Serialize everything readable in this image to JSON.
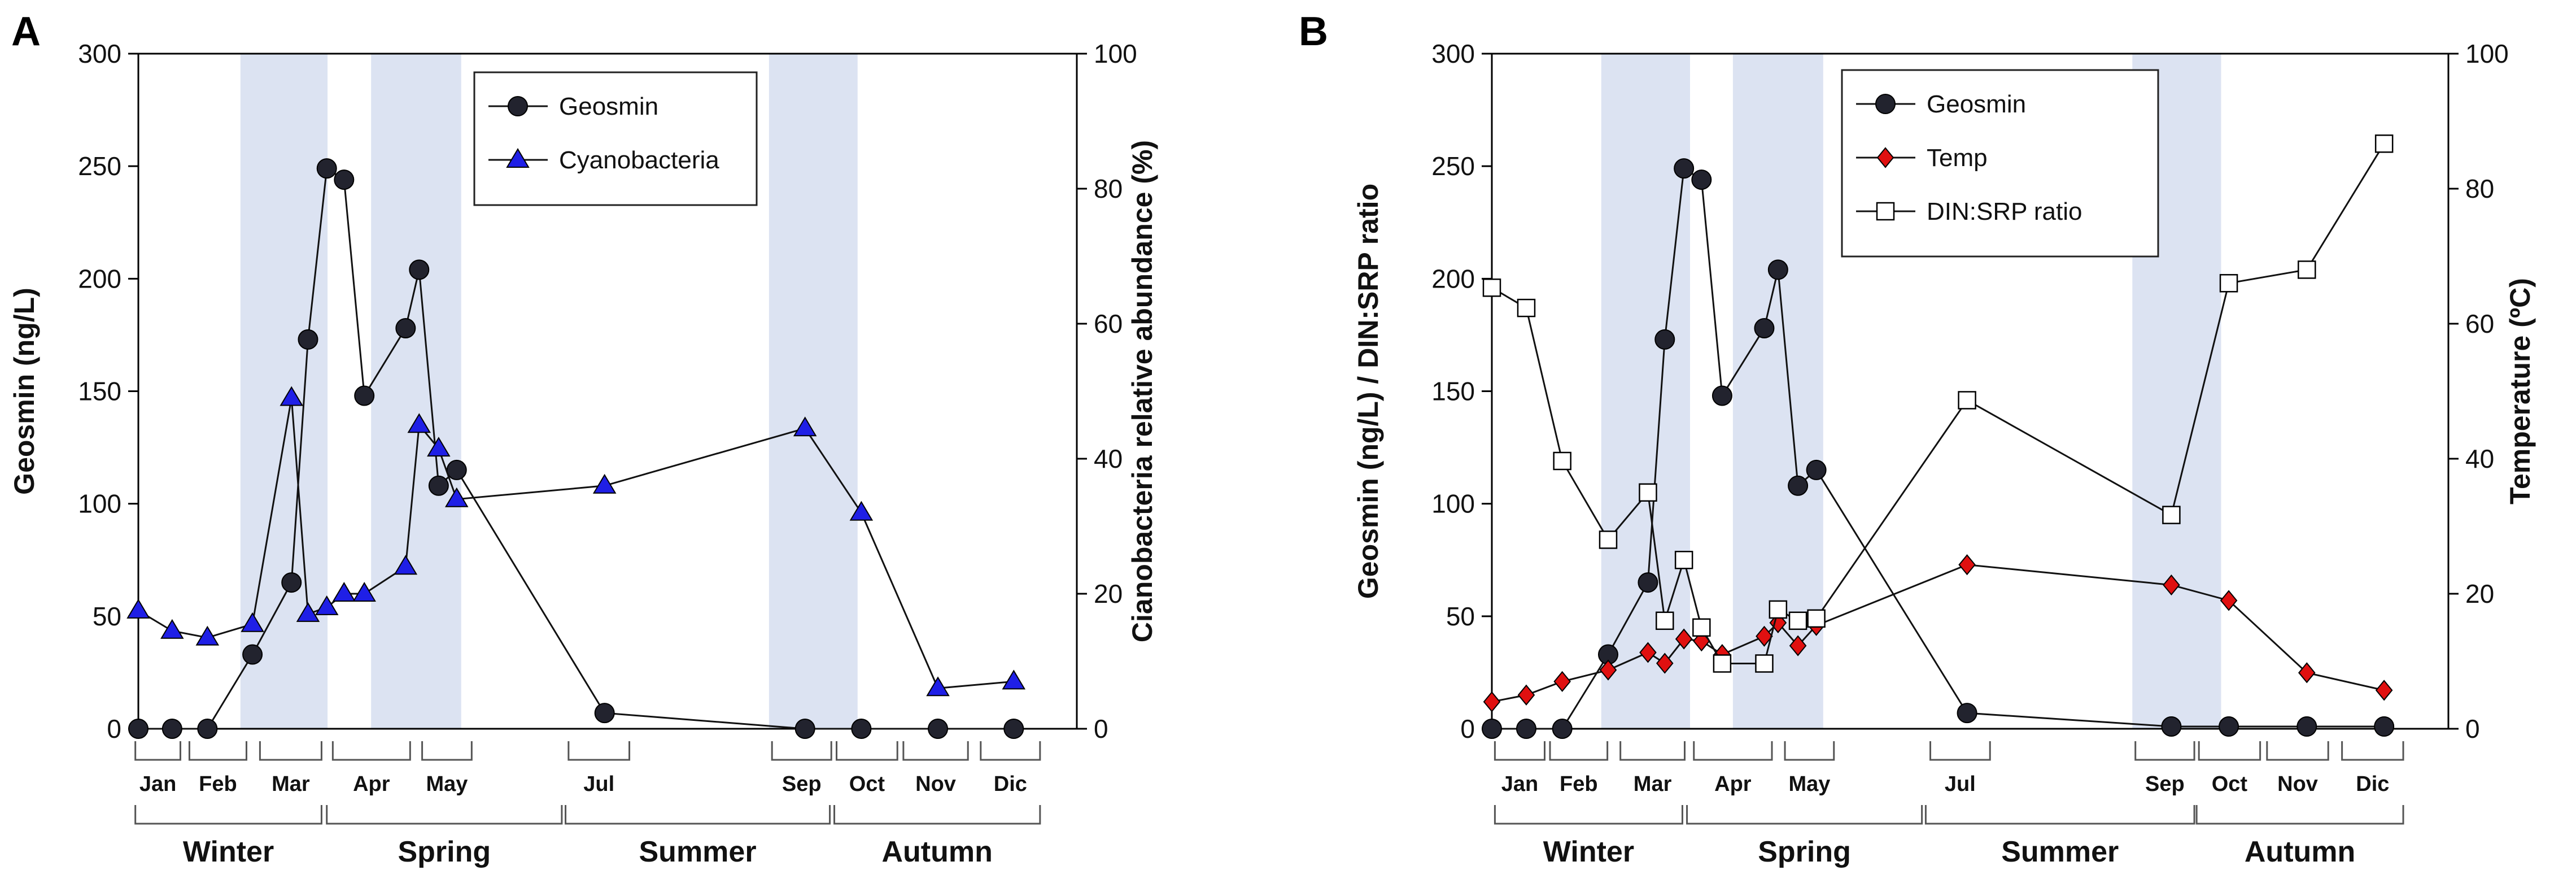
{
  "chart_data": [
    {
      "panel": "A",
      "type": "line",
      "ylabel": "Geosmin (ng/L)",
      "ylabel_right": "Cianobacteria relative abundance (%)",
      "ylim": [
        0,
        300
      ],
      "ylim_right": [
        0,
        100
      ],
      "yticks": [
        "0",
        "50",
        "100",
        "150",
        "200",
        "250",
        "300"
      ],
      "yticks_right": [
        "0",
        "20",
        "40",
        "60",
        "80",
        "100"
      ],
      "xlim": [
        1.0,
        13.5
      ],
      "shaded_x": [
        [
          2.36,
          3.52
        ],
        [
          4.1,
          5.3
        ],
        [
          9.4,
          10.58
        ]
      ],
      "months": [
        {
          "label": "Jan",
          "range": [
            0.96,
            1.56
          ]
        },
        {
          "label": "Feb",
          "range": [
            1.68,
            2.44
          ]
        },
        {
          "label": "Mar",
          "range": [
            2.62,
            3.44
          ]
        },
        {
          "label": "Apr",
          "range": [
            3.59,
            4.62
          ]
        },
        {
          "label": "May",
          "range": [
            4.78,
            5.44
          ]
        },
        {
          "label": "Jul",
          "range": [
            6.73,
            7.54
          ]
        },
        {
          "label": "Sep",
          "range": [
            9.44,
            10.23
          ]
        },
        {
          "label": "Oct",
          "range": [
            10.3,
            11.11
          ]
        },
        {
          "label": "Nov",
          "range": [
            11.19,
            12.05
          ]
        },
        {
          "label": "Dic",
          "range": [
            12.22,
            13.01
          ]
        }
      ],
      "seasons": [
        {
          "label": "Winter",
          "range": [
            0.96,
            3.44
          ]
        },
        {
          "label": "Spring",
          "range": [
            3.51,
            6.64
          ]
        },
        {
          "label": "Summer",
          "range": [
            6.69,
            10.21
          ]
        },
        {
          "label": "Autumn",
          "range": [
            10.27,
            13.01
          ]
        }
      ],
      "x": [
        1.0,
        1.45,
        1.92,
        2.52,
        3.04,
        3.26,
        3.51,
        3.74,
        4.01,
        4.56,
        4.74,
        5.0,
        5.24,
        7.21,
        9.88,
        10.63,
        11.65,
        12.66
      ],
      "series": [
        {
          "name": "Geosmin",
          "axis": "left",
          "marker": "circle",
          "color": "#22232e",
          "values": [
            0,
            0,
            0,
            33,
            65,
            173,
            249,
            244,
            148,
            178,
            204,
            108,
            115,
            7,
            0,
            0,
            0,
            0
          ]
        },
        {
          "name": "Cyanobacteria",
          "axis": "right",
          "marker": "triangle",
          "color": "#1f1fe6",
          "values": [
            17.5,
            14.5,
            13.5,
            15.5,
            49,
            17,
            18,
            20,
            20,
            24,
            45,
            41.5,
            34,
            36,
            44.5,
            32,
            6,
            7
          ]
        }
      ],
      "legend_position": "top-center"
    },
    {
      "panel": "B",
      "type": "line",
      "ylabel": "Geosmin (ng/L) / DIN:SRP ratio",
      "ylabel_right": "Temperature (ºC)",
      "ylim": [
        0,
        300
      ],
      "ylim_right": [
        0,
        100
      ],
      "yticks": [
        "0",
        "50",
        "100",
        "150",
        "200",
        "250",
        "300"
      ],
      "yticks_right": [
        "0",
        "20",
        "40",
        "60",
        "80",
        "100"
      ],
      "xlim": [
        1.0,
        13.5
      ],
      "shaded_x": [
        [
          2.43,
          3.59
        ],
        [
          4.15,
          5.33
        ],
        [
          9.37,
          10.53
        ]
      ],
      "months": [
        {
          "label": "Jan",
          "range": [
            1.04,
            1.69
          ]
        },
        {
          "label": "Feb",
          "range": [
            1.76,
            2.51
          ]
        },
        {
          "label": "Mar",
          "range": [
            2.68,
            3.52
          ]
        },
        {
          "label": "Apr",
          "range": [
            3.64,
            4.66
          ]
        },
        {
          "label": "May",
          "range": [
            4.83,
            5.47
          ]
        },
        {
          "label": "Jul",
          "range": [
            6.73,
            7.51
          ]
        },
        {
          "label": "Sep",
          "range": [
            9.41,
            10.18
          ]
        },
        {
          "label": "Oct",
          "range": [
            10.24,
            11.04
          ]
        },
        {
          "label": "Nov",
          "range": [
            11.13,
            11.93
          ]
        },
        {
          "label": "Dic",
          "range": [
            12.11,
            12.91
          ]
        }
      ],
      "seasons": [
        {
          "label": "Winter",
          "range": [
            1.04,
            3.49
          ]
        },
        {
          "label": "Spring",
          "range": [
            3.55,
            6.62
          ]
        },
        {
          "label": "Summer",
          "range": [
            6.67,
            10.18
          ]
        },
        {
          "label": "Autumn",
          "range": [
            10.21,
            12.91
          ]
        }
      ],
      "x": [
        1.0,
        1.45,
        1.92,
        2.52,
        3.04,
        3.26,
        3.51,
        3.74,
        4.01,
        4.56,
        4.74,
        5.0,
        5.24,
        7.21,
        9.88,
        10.63,
        11.65,
        12.66
      ],
      "series": [
        {
          "name": "Geosmin",
          "axis": "left",
          "marker": "circle",
          "color": "#22232e",
          "values": [
            0,
            0,
            0,
            33,
            65,
            173,
            249,
            244,
            148,
            178,
            204,
            108,
            115,
            7,
            1,
            1,
            1,
            1
          ]
        },
        {
          "name": "Temp",
          "axis": "right",
          "marker": "diamond",
          "color": "#e01010",
          "values": [
            4,
            5,
            7,
            8.7,
            11.3,
            9.7,
            13.3,
            13,
            11,
            13.7,
            15.7,
            12.3,
            15.3,
            24.3,
            21.3,
            19,
            8.3,
            5.7
          ]
        },
        {
          "name": "DIN:SRP ratio",
          "axis": "left",
          "marker": "square",
          "color": "#ffffff",
          "values": [
            196,
            187,
            119,
            84,
            105,
            48,
            75,
            45,
            29,
            29,
            53,
            48,
            49,
            146,
            95,
            198,
            204,
            260
          ]
        }
      ],
      "legend_position": "top-center"
    }
  ]
}
